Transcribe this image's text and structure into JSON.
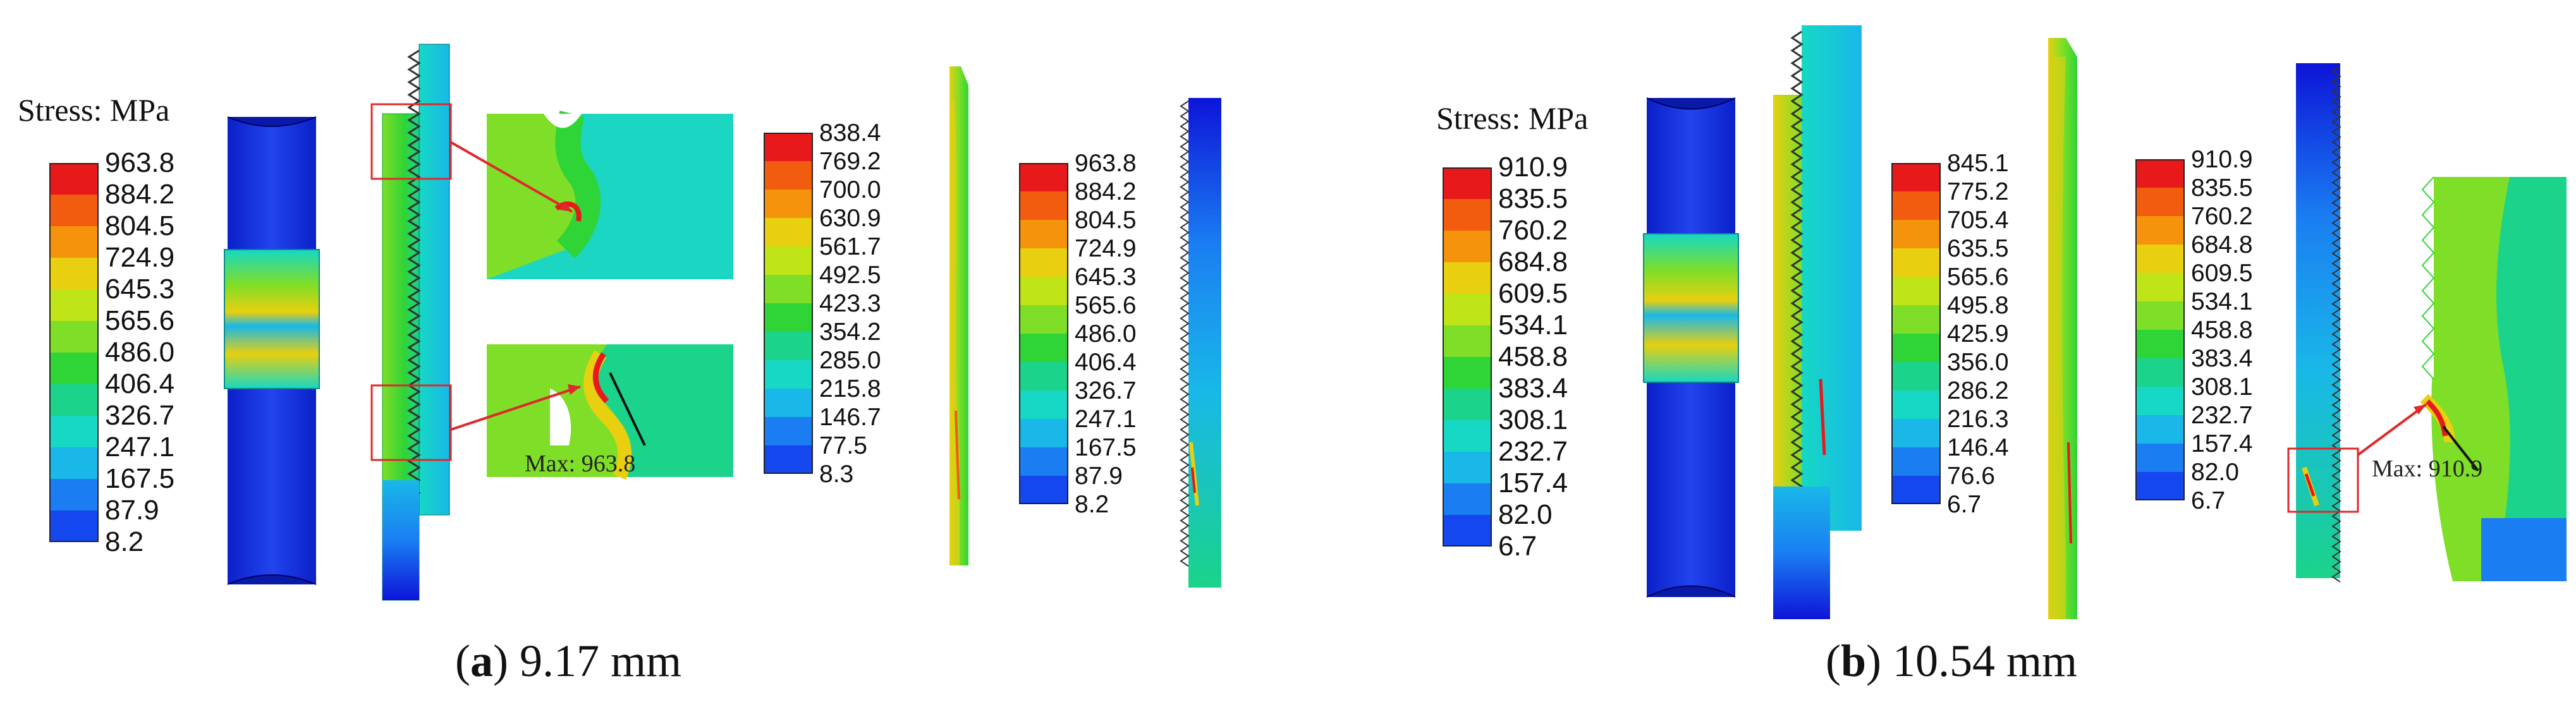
{
  "panels": [
    {
      "id": "a",
      "stress_title": "Stress: MPa",
      "caption_letter": "a",
      "caption_value": "9.17 mm",
      "max_label": "Max: 963.8",
      "legends": [
        {
          "id": "a1",
          "labels": [
            "963.8",
            "884.2",
            "804.5",
            "724.9",
            "645.3",
            "565.6",
            "486.0",
            "406.4",
            "326.7",
            "247.1",
            "167.5",
            "87.9",
            "8.2"
          ]
        },
        {
          "id": "a2",
          "labels": [
            "838.4",
            "769.2",
            "700.0",
            "630.9",
            "561.7",
            "492.5",
            "423.3",
            "354.2",
            "285.0",
            "215.8",
            "146.7",
            "77.5",
            "8.3"
          ]
        },
        {
          "id": "a3",
          "labels": [
            "963.8",
            "884.2",
            "804.5",
            "724.9",
            "645.3",
            "565.6",
            "486.0",
            "406.4",
            "326.7",
            "247.1",
            "167.5",
            "87.9",
            "8.2"
          ]
        }
      ]
    },
    {
      "id": "b",
      "stress_title": "Stress: MPa",
      "caption_letter": "b",
      "caption_value": "10.54 mm",
      "max_label": "Max: 910.9",
      "legends": [
        {
          "id": "b1",
          "labels": [
            "910.9",
            "835.5",
            "760.2",
            "684.8",
            "609.5",
            "534.1",
            "458.8",
            "383.4",
            "308.1",
            "232.7",
            "157.4",
            "82.0",
            "6.7"
          ]
        },
        {
          "id": "b2",
          "labels": [
            "845.1",
            "775.2",
            "705.4",
            "635.5",
            "565.6",
            "495.8",
            "425.9",
            "356.0",
            "286.2",
            "216.3",
            "146.4",
            "76.6",
            "6.7"
          ]
        },
        {
          "id": "b3",
          "labels": [
            "910.9",
            "835.5",
            "760.2",
            "684.8",
            "609.5",
            "534.1",
            "458.8",
            "383.4",
            "308.1",
            "232.7",
            "157.4",
            "82.0",
            "6.7"
          ]
        }
      ]
    }
  ],
  "colormap": [
    "#e8191a",
    "#f25c0e",
    "#f6930c",
    "#e8cf10",
    "#bfe418",
    "#7fde27",
    "#2fd437",
    "#1bd38a",
    "#16d8c4",
    "#19b8e8",
    "#1a7ef2",
    "#1447ee",
    "#0d14d8"
  ]
}
